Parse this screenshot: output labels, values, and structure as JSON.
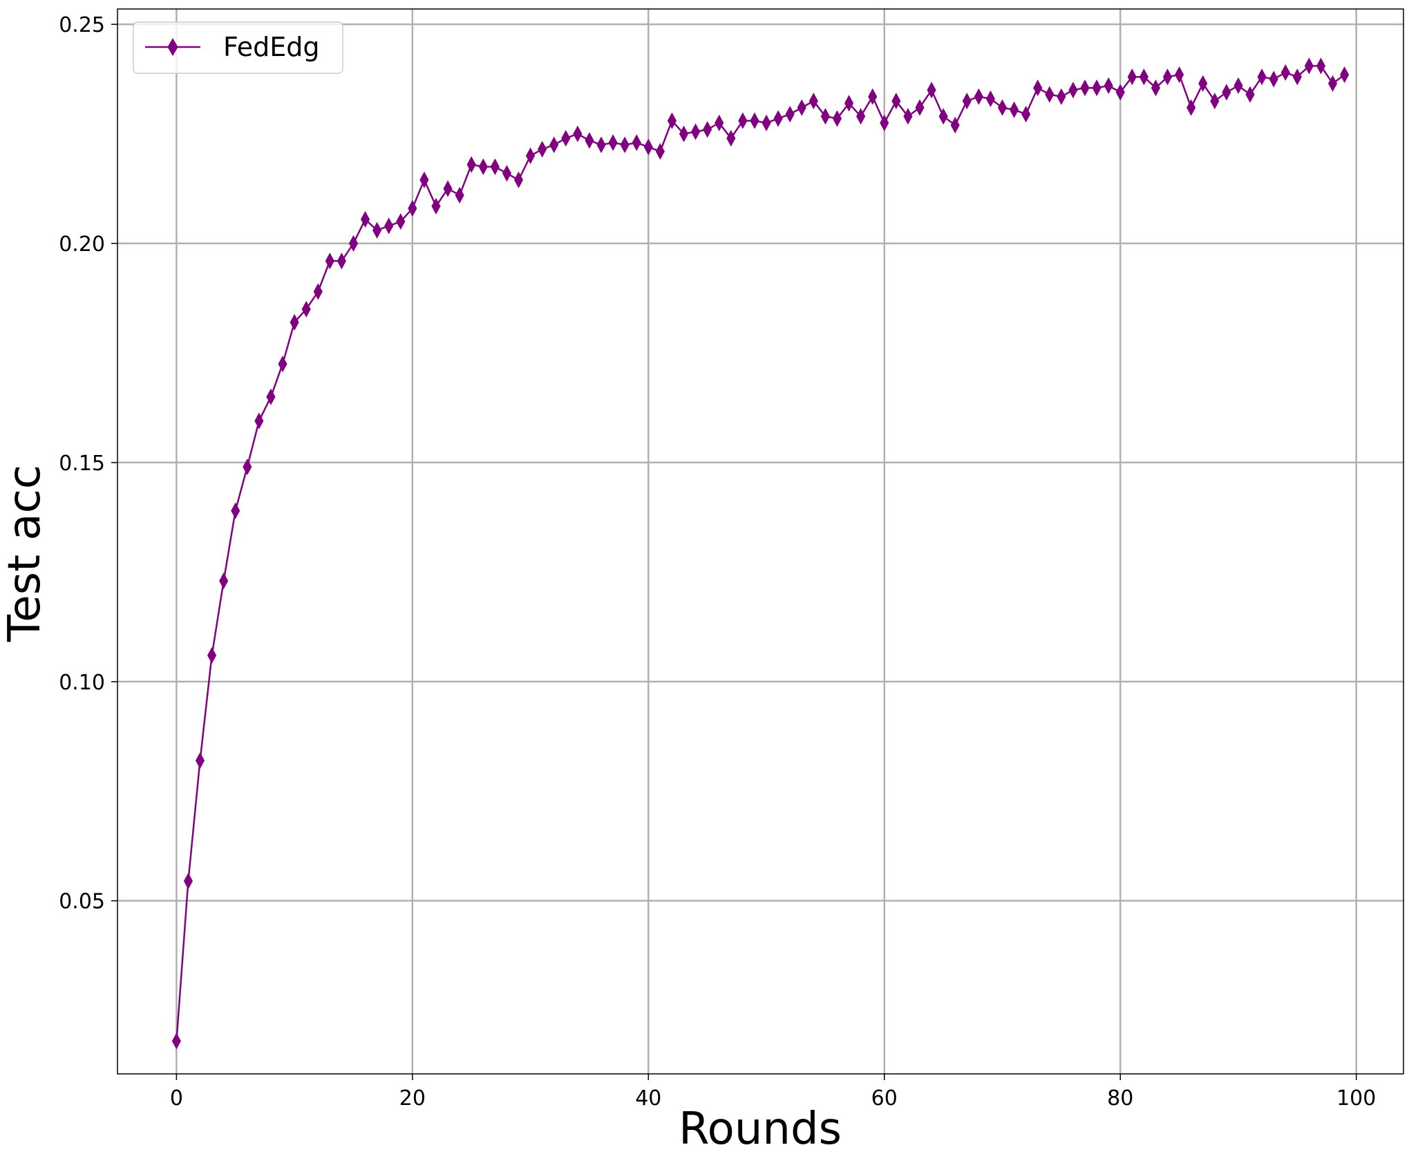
{
  "chart_data": {
    "type": "line",
    "title": "",
    "xlabel": "Rounds",
    "ylabel": "Test acc",
    "xlim": [
      -5,
      104
    ],
    "ylim": [
      0.0105,
      0.2535
    ],
    "xticks": [
      0,
      20,
      40,
      60,
      80,
      100
    ],
    "xtick_labels": [
      "0",
      "20",
      "40",
      "60",
      "80",
      "100"
    ],
    "yticks": [
      0.05,
      0.1,
      0.15,
      0.2,
      0.25
    ],
    "ytick_labels": [
      "0.05",
      "0.10",
      "0.15",
      "0.20",
      "0.25"
    ],
    "grid": true,
    "legend_position": "top-left",
    "series": [
      {
        "name": "FedEdg",
        "color": "#800080",
        "marker": "thin-diamond",
        "x": [
          0,
          1,
          2,
          3,
          4,
          5,
          6,
          7,
          8,
          9,
          10,
          11,
          12,
          13,
          14,
          15,
          16,
          17,
          18,
          19,
          20,
          21,
          22,
          23,
          24,
          25,
          26,
          27,
          28,
          29,
          30,
          31,
          32,
          33,
          34,
          35,
          36,
          37,
          38,
          39,
          40,
          41,
          42,
          43,
          44,
          45,
          46,
          47,
          48,
          49,
          50,
          51,
          52,
          53,
          54,
          55,
          56,
          57,
          58,
          59,
          60,
          61,
          62,
          63,
          64,
          65,
          66,
          67,
          68,
          69,
          70,
          71,
          72,
          73,
          74,
          75,
          76,
          77,
          78,
          79,
          80,
          81,
          82,
          83,
          84,
          85,
          86,
          87,
          88,
          89,
          90,
          91,
          92,
          93,
          94,
          95,
          96,
          97,
          98,
          99
        ],
        "y": [
          0.018,
          0.0545,
          0.082,
          0.106,
          0.123,
          0.139,
          0.149,
          0.1595,
          0.165,
          0.1725,
          0.182,
          0.185,
          0.189,
          0.196,
          0.196,
          0.2,
          0.2055,
          0.203,
          0.204,
          0.205,
          0.208,
          0.2145,
          0.2085,
          0.2125,
          0.211,
          0.218,
          0.2175,
          0.2175,
          0.216,
          0.2145,
          0.22,
          0.2215,
          0.2225,
          0.224,
          0.225,
          0.2235,
          0.2225,
          0.223,
          0.2225,
          0.223,
          0.222,
          0.221,
          0.228,
          0.225,
          0.2255,
          0.226,
          0.2275,
          0.224,
          0.228,
          0.228,
          0.2275,
          0.2285,
          0.2295,
          0.231,
          0.2325,
          0.229,
          0.2285,
          0.232,
          0.229,
          0.2335,
          0.2275,
          0.2325,
          0.229,
          0.231,
          0.235,
          0.229,
          0.227,
          0.2325,
          0.2335,
          0.233,
          0.231,
          0.2305,
          0.2295,
          0.2355,
          0.234,
          0.2335,
          0.235,
          0.2355,
          0.2355,
          0.236,
          0.2345,
          0.238,
          0.238,
          0.2355,
          0.238,
          0.2385,
          0.231,
          0.2365,
          0.2325,
          0.2345,
          0.236,
          0.234,
          0.238,
          0.2375,
          0.239,
          0.238,
          0.2405,
          0.2405,
          0.2365,
          0.2385
        ]
      }
    ]
  }
}
